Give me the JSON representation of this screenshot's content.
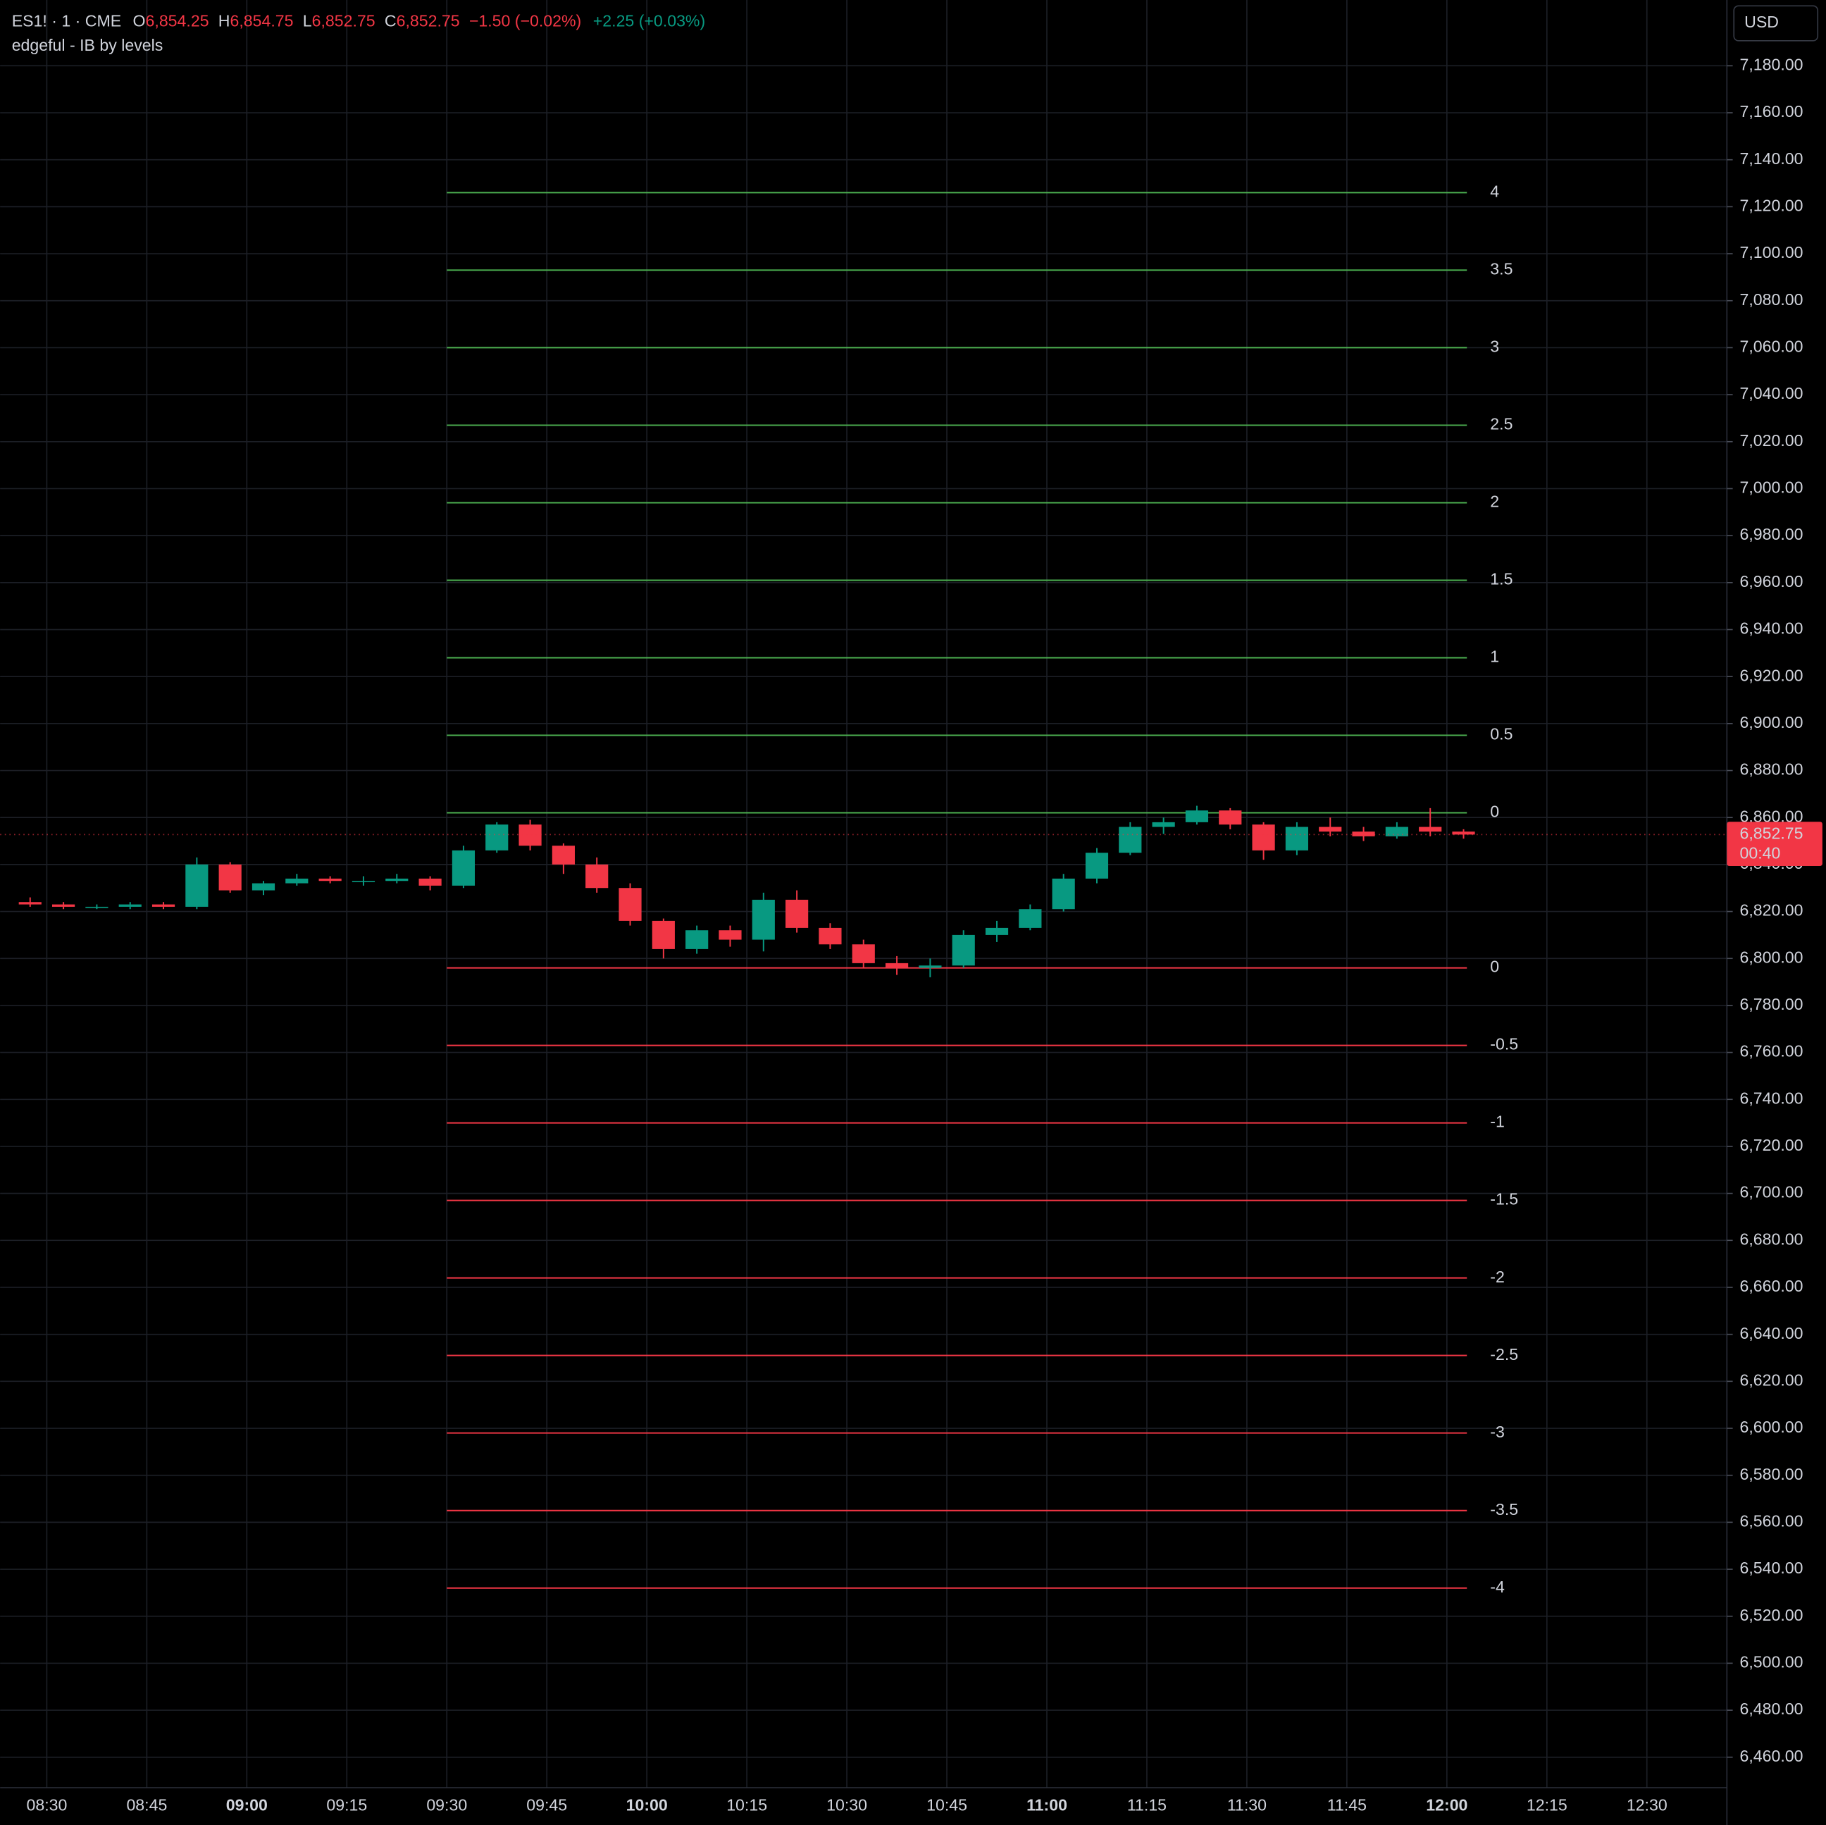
{
  "chart_data": {
    "type": "candlestick",
    "symbol": "ES1! · 1 · CME",
    "ohlc_header": [
      {
        "key": "O",
        "text": "6,854.25"
      },
      {
        "key": "H",
        "text": "6,854.75"
      },
      {
        "key": "L",
        "text": "6,852.75"
      },
      {
        "key": "C",
        "text": "6,852.75"
      }
    ],
    "change": "−1.50 (−0.02%)",
    "extra_change": "+2.25 (+0.03%)",
    "indicator": "edgeful - IB by levels",
    "currency": "USD",
    "last_price": {
      "value": 6852.75,
      "label": "6,852.75"
    },
    "countdown": "00:40",
    "up_color": "#089981",
    "down_color": "#f23645",
    "grid": true,
    "xlim": [
      "08:23",
      "12:42"
    ],
    "xticks": [
      "08:30",
      "08:45",
      "09:00",
      "09:15",
      "09:30",
      "09:45",
      "10:00",
      "10:15",
      "10:30",
      "10:45",
      "11:00",
      "11:15",
      "11:30",
      "11:45",
      "12:00",
      "12:15",
      "12:30"
    ],
    "ylim": [
      6447,
      7208
    ],
    "yticks": [
      {
        "value": 7180,
        "label": "7,180.00"
      },
      {
        "value": 7160,
        "label": "7,160.00"
      },
      {
        "value": 7140,
        "label": "7,140.00"
      },
      {
        "value": 7120,
        "label": "7,120.00"
      },
      {
        "value": 7100,
        "label": "7,100.00"
      },
      {
        "value": 7080,
        "label": "7,080.00"
      },
      {
        "value": 7060,
        "label": "7,060.00"
      },
      {
        "value": 7040,
        "label": "7,040.00"
      },
      {
        "value": 7020,
        "label": "7,020.00"
      },
      {
        "value": 7000,
        "label": "7,000.00"
      },
      {
        "value": 6980,
        "label": "6,980.00"
      },
      {
        "value": 6960,
        "label": "6,960.00"
      },
      {
        "value": 6940,
        "label": "6,940.00"
      },
      {
        "value": 6920,
        "label": "6,920.00"
      },
      {
        "value": 6900,
        "label": "6,900.00"
      },
      {
        "value": 6880,
        "label": "6,880.00"
      },
      {
        "value": 6860,
        "label": "6,860.00"
      },
      {
        "value": 6840,
        "label": "6,840.00"
      },
      {
        "value": 6820,
        "label": "6,820.00"
      },
      {
        "value": 6800,
        "label": "6,800.00"
      },
      {
        "value": 6780,
        "label": "6,780.00"
      },
      {
        "value": 6760,
        "label": "6,760.00"
      },
      {
        "value": 6740,
        "label": "6,740.00"
      },
      {
        "value": 6720,
        "label": "6,720.00"
      },
      {
        "value": 6700,
        "label": "6,700.00"
      },
      {
        "value": 6680,
        "label": "6,680.00"
      },
      {
        "value": 6660,
        "label": "6,660.00"
      },
      {
        "value": 6640,
        "label": "6,640.00"
      },
      {
        "value": 6620,
        "label": "6,620.00"
      },
      {
        "value": 6600,
        "label": "6,600.00"
      },
      {
        "value": 6580,
        "label": "6,580.00"
      },
      {
        "value": 6560,
        "label": "6,560.00"
      },
      {
        "value": 6540,
        "label": "6,540.00"
      },
      {
        "value": 6520,
        "label": "6,520.00"
      },
      {
        "value": 6500,
        "label": "6,500.00"
      },
      {
        "value": 6480,
        "label": "6,480.00"
      },
      {
        "value": 6460,
        "label": "6,460.00"
      }
    ],
    "level_span": [
      "09:30",
      "12:03"
    ],
    "level_groups": [
      {
        "color": "#4caf50",
        "levels": [
          {
            "name": "4",
            "price": 7126
          },
          {
            "name": "3.5",
            "price": 7093
          },
          {
            "name": "3",
            "price": 7060
          },
          {
            "name": "2.5",
            "price": 7027
          },
          {
            "name": "2",
            "price": 6994
          },
          {
            "name": "1.5",
            "price": 6961
          },
          {
            "name": "1",
            "price": 6928
          },
          {
            "name": "0.5",
            "price": 6895
          },
          {
            "name": "0",
            "price": 6862
          }
        ]
      },
      {
        "color": "#f23645",
        "levels": [
          {
            "name": "0",
            "price": 6796
          },
          {
            "name": "-0.5",
            "price": 6763
          },
          {
            "name": "-1",
            "price": 6730
          },
          {
            "name": "-1.5",
            "price": 6697
          },
          {
            "name": "-2",
            "price": 6664
          },
          {
            "name": "-2.5",
            "price": 6631
          },
          {
            "name": "-3",
            "price": 6598
          },
          {
            "name": "-3.5",
            "price": 6565
          },
          {
            "name": "-4",
            "price": 6532
          }
        ]
      }
    ],
    "candle_minutes": 5,
    "x": [
      "08:25",
      "08:30",
      "08:35",
      "08:40",
      "08:45",
      "08:50",
      "08:55",
      "09:00",
      "09:05",
      "09:10",
      "09:15",
      "09:20",
      "09:25",
      "09:30",
      "09:35",
      "09:40",
      "09:45",
      "09:50",
      "09:55",
      "10:00",
      "10:05",
      "10:10",
      "10:15",
      "10:20",
      "10:25",
      "10:30",
      "10:35",
      "10:40",
      "10:45",
      "10:50",
      "10:55",
      "11:00",
      "11:05",
      "11:10",
      "11:15",
      "11:20",
      "11:25",
      "11:30",
      "11:35",
      "11:40",
      "11:45",
      "11:50",
      "11:55",
      "12:00"
    ],
    "open": [
      6824,
      6823,
      6822,
      6822,
      6823,
      6822,
      6840,
      6829,
      6832,
      6834,
      6833,
      6833,
      6834,
      6831,
      6846,
      6857,
      6848,
      6840,
      6830,
      6816,
      6804,
      6812,
      6808,
      6825,
      6813,
      6806,
      6798,
      6796,
      6797,
      6810,
      6813,
      6821,
      6834,
      6845,
      6856,
      6858,
      6863,
      6857,
      6846,
      6856,
      6854,
      6852,
      6856,
      6854
    ],
    "high": [
      6826,
      6824,
      6823,
      6824,
      6824,
      6843,
      6841,
      6833,
      6836,
      6835,
      6835,
      6836,
      6835,
      6848,
      6858,
      6859,
      6849,
      6843,
      6832,
      6817,
      6814,
      6814,
      6828,
      6829,
      6815,
      6808,
      6801,
      6800,
      6812,
      6816,
      6823,
      6836,
      6847,
      6858,
      6860,
      6865,
      6864,
      6858,
      6858,
      6860,
      6856,
      6858,
      6864,
      6855
    ],
    "low": [
      6822,
      6821,
      6821,
      6821,
      6821,
      6821,
      6828,
      6827,
      6831,
      6832,
      6831,
      6832,
      6829,
      6830,
      6845,
      6846,
      6836,
      6828,
      6814,
      6800,
      6802,
      6805,
      6803,
      6811,
      6804,
      6796,
      6793,
      6792,
      6796,
      6807,
      6812,
      6820,
      6832,
      6844,
      6853,
      6857,
      6855,
      6842,
      6844,
      6852,
      6850,
      6851,
      6852,
      6851
    ],
    "close": [
      6823,
      6822,
      6822,
      6823,
      6822,
      6840,
      6829,
      6832,
      6834,
      6833,
      6833,
      6834,
      6831,
      6846,
      6857,
      6848,
      6840,
      6830,
      6816,
      6804,
      6812,
      6808,
      6825,
      6813,
      6806,
      6798,
      6796,
      6797,
      6810,
      6813,
      6821,
      6834,
      6845,
      6856,
      6858,
      6863,
      6857,
      6846,
      6856,
      6854,
      6852,
      6856,
      6854,
      6852.75
    ]
  }
}
